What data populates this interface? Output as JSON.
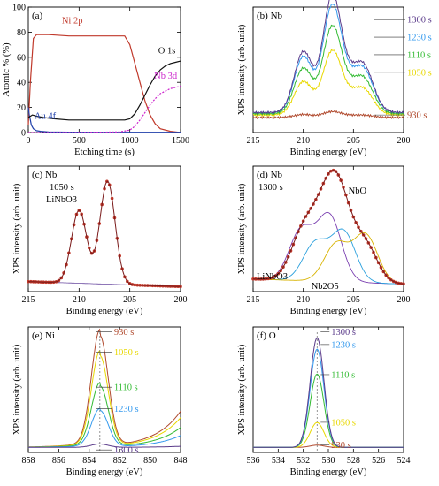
{
  "colors": {
    "ni": "#c0392b",
    "au": "#1f3faa",
    "o": "#111111",
    "nb": "#cc22cc",
    "t930": "#b04a2e",
    "t1050": "#e8d800",
    "t1110": "#33bb33",
    "t1230": "#3399ee",
    "t1300": "#5a3a8a",
    "fitcolor": "#7a1a1a",
    "ptcolor": "#c0392b"
  },
  "chart_data": [
    {
      "id": "a",
      "type": "line",
      "panel_label": "(a)",
      "xlabel": "Etching time (s)",
      "ylabel": "Atomic % (%)",
      "xlim": [
        0,
        1500
      ],
      "ylim": [
        0,
        100
      ],
      "xticks": [
        0,
        500,
        1000,
        1500
      ],
      "yticks": [
        0,
        20,
        40,
        60,
        80,
        100
      ],
      "annotations": [
        {
          "text": "Ni 2p",
          "x": 330,
          "y": 87,
          "color": "#c0392b"
        },
        {
          "text": "O 1s",
          "x": 1280,
          "y": 63,
          "color": "#111111"
        },
        {
          "text": "Nb 3d",
          "x": 1240,
          "y": 43,
          "color": "#cc22cc"
        },
        {
          "text": "Au 4f",
          "x": 60,
          "y": 11,
          "color": "#1f3faa"
        }
      ],
      "series": [
        {
          "key": "ni",
          "x": [
            0,
            20,
            50,
            80,
            120,
            200,
            400,
            600,
            800,
            950,
            1000,
            1050,
            1100,
            1150,
            1200,
            1250,
            1300,
            1400,
            1500
          ],
          "y": [
            6,
            40,
            75,
            78,
            78,
            78,
            77,
            77,
            77,
            77,
            70,
            55,
            40,
            25,
            14,
            7,
            3,
            1,
            0
          ]
        },
        {
          "key": "au",
          "x": [
            0,
            10,
            20,
            30,
            50,
            80,
            120,
            200,
            400,
            800,
            1500
          ],
          "y": [
            20,
            14,
            10,
            6,
            3,
            1.5,
            1,
            0.5,
            0.3,
            0.2,
            0.2
          ]
        },
        {
          "key": "o",
          "x": [
            0,
            40,
            80,
            150,
            250,
            400,
            600,
            800,
            950,
            1000,
            1050,
            1100,
            1150,
            1200,
            1250,
            1300,
            1350,
            1400,
            1450,
            1500
          ],
          "y": [
            12,
            14,
            13,
            12,
            11,
            10,
            10,
            10,
            10,
            11,
            15,
            22,
            30,
            38,
            45,
            50,
            53,
            55,
            56,
            57
          ]
        },
        {
          "key": "nb",
          "x": [
            0,
            500,
            900,
            1000,
            1050,
            1100,
            1150,
            1200,
            1250,
            1300,
            1350,
            1400,
            1450,
            1500
          ],
          "y": [
            0,
            0,
            0.5,
            2,
            5,
            10,
            16,
            22,
            27,
            31,
            33,
            35,
            36,
            37
          ]
        }
      ]
    },
    {
      "id": "b",
      "type": "line",
      "panel_label": "(b) Nb",
      "xlabel": "Binding energy (eV)",
      "ylabel": "XPS intensity (arb. unit)",
      "xlim": [
        215,
        200
      ],
      "xticks": [
        215,
        210,
        205,
        200
      ],
      "ylim": [
        0,
        100
      ],
      "time_labels": [
        {
          "text": "1300 s",
          "key": "t1300",
          "y": 90
        },
        {
          "text": "1230 s",
          "key": "t1230",
          "y": 76
        },
        {
          "text": "1110 s",
          "key": "t1110",
          "y": 62
        },
        {
          "text": "1050 s",
          "key": "t1050",
          "y": 48
        },
        {
          "text": "930 s",
          "key": "t930",
          "y": 14
        }
      ],
      "series": [
        {
          "key": "t930",
          "scale": 0.05,
          "base": 12
        },
        {
          "key": "t1050",
          "scale": 0.55,
          "base": 14
        },
        {
          "key": "t1110",
          "scale": 0.75,
          "base": 15
        },
        {
          "key": "t1230",
          "scale": 0.92,
          "base": 16
        },
        {
          "key": "t1300",
          "scale": 1.0,
          "base": 16
        }
      ]
    },
    {
      "id": "c",
      "type": "scatter",
      "panel_label": "(c) Nb",
      "subtitle": "1050 s",
      "species_label": "LiNbO3",
      "xlabel": "Binding energy (eV)",
      "ylabel": "XPS intensity (arb. unit)",
      "xlim": [
        215,
        200
      ],
      "xticks": [
        215,
        210,
        205,
        200
      ],
      "ylim": [
        0,
        100
      ],
      "peaks": [
        {
          "center": 210.0,
          "height": 58,
          "width": 0.75
        },
        {
          "center": 207.2,
          "height": 82,
          "width": 0.75
        }
      ],
      "background": [
        8,
        4
      ]
    },
    {
      "id": "d",
      "type": "scatter",
      "panel_label": "(d) Nb",
      "subtitle": "1300 s",
      "component_labels": [
        "NbO",
        "LiNbO3",
        "Nb2O5"
      ],
      "xlabel": "Binding energy (eV)",
      "ylabel": "XPS intensity (arb. unit)",
      "xlim": [
        215,
        200
      ],
      "xticks": [
        215,
        210,
        205,
        200
      ],
      "ylim": [
        0,
        100
      ],
      "components": [
        {
          "name": "LiNbO3",
          "peaks": [
            {
              "center": 210.2,
              "height": 40,
              "width": 1.2
            },
            {
              "center": 207.4,
              "height": 52,
              "width": 1.2
            }
          ],
          "color": "#7a3fb0"
        },
        {
          "name": "Nb2O5",
          "peaks": [
            {
              "center": 208.8,
              "height": 30,
              "width": 1.2
            },
            {
              "center": 206.0,
              "height": 40,
              "width": 1.2
            }
          ],
          "color": "#2aa0dd"
        },
        {
          "name": "NbO",
          "peaks": [
            {
              "center": 206.7,
              "height": 30,
              "width": 1.2
            },
            {
              "center": 203.8,
              "height": 38,
              "width": 1.2
            }
          ],
          "color": "#d8b300"
        }
      ],
      "background": [
        10,
        6
      ]
    },
    {
      "id": "e",
      "type": "line",
      "panel_label": "(e) Ni",
      "xlabel": "Binding energy (eV)",
      "ylabel": "XPS intensity (arb. unit)",
      "xlim": [
        858,
        848
      ],
      "xticks": [
        858,
        856,
        854,
        852,
        850,
        848
      ],
      "ylim": [
        0,
        100
      ],
      "peak_center": 853.3,
      "time_labels": [
        {
          "text": "930 s",
          "key": "t930",
          "y": 96
        },
        {
          "text": "1050 s",
          "key": "t1050",
          "y": 80
        },
        {
          "text": "1110 s",
          "key": "t1110",
          "y": 52
        },
        {
          "text": "1230 s",
          "key": "t1230",
          "y": 35
        },
        {
          "text": "1300 s",
          "key": "t1300",
          "y": 2
        }
      ],
      "series": [
        {
          "key": "t930",
          "scale": 1.0
        },
        {
          "key": "t1050",
          "scale": 0.82
        },
        {
          "key": "t1110",
          "scale": 0.55
        },
        {
          "key": "t1230",
          "scale": 0.33
        },
        {
          "key": "t1300",
          "scale": 0.03
        }
      ]
    },
    {
      "id": "f",
      "type": "line",
      "panel_label": "(f) O",
      "xlabel": "Binding energy (eV)",
      "ylabel": "XPS intensity (arb. unit)",
      "xlim": [
        536,
        524
      ],
      "xticks": [
        536,
        534,
        532,
        530,
        528,
        526,
        524
      ],
      "ylim": [
        0,
        100
      ],
      "peak_center": 530.9,
      "time_labels": [
        {
          "text": "1300 s",
          "key": "t1300",
          "y": 96
        },
        {
          "text": "1230 s",
          "key": "t1230",
          "y": 86
        },
        {
          "text": "1110 s",
          "key": "t1110",
          "y": 62
        },
        {
          "text": "1050 s",
          "key": "t1050",
          "y": 24
        },
        {
          "text": "930 s",
          "key": "t930",
          "y": 6
        }
      ],
      "series": [
        {
          "key": "t930",
          "scale": 0.02
        },
        {
          "key": "t1050",
          "scale": 0.22
        },
        {
          "key": "t1110",
          "scale": 0.65
        },
        {
          "key": "t1230",
          "scale": 0.87
        },
        {
          "key": "t1300",
          "scale": 0.97
        }
      ]
    }
  ]
}
